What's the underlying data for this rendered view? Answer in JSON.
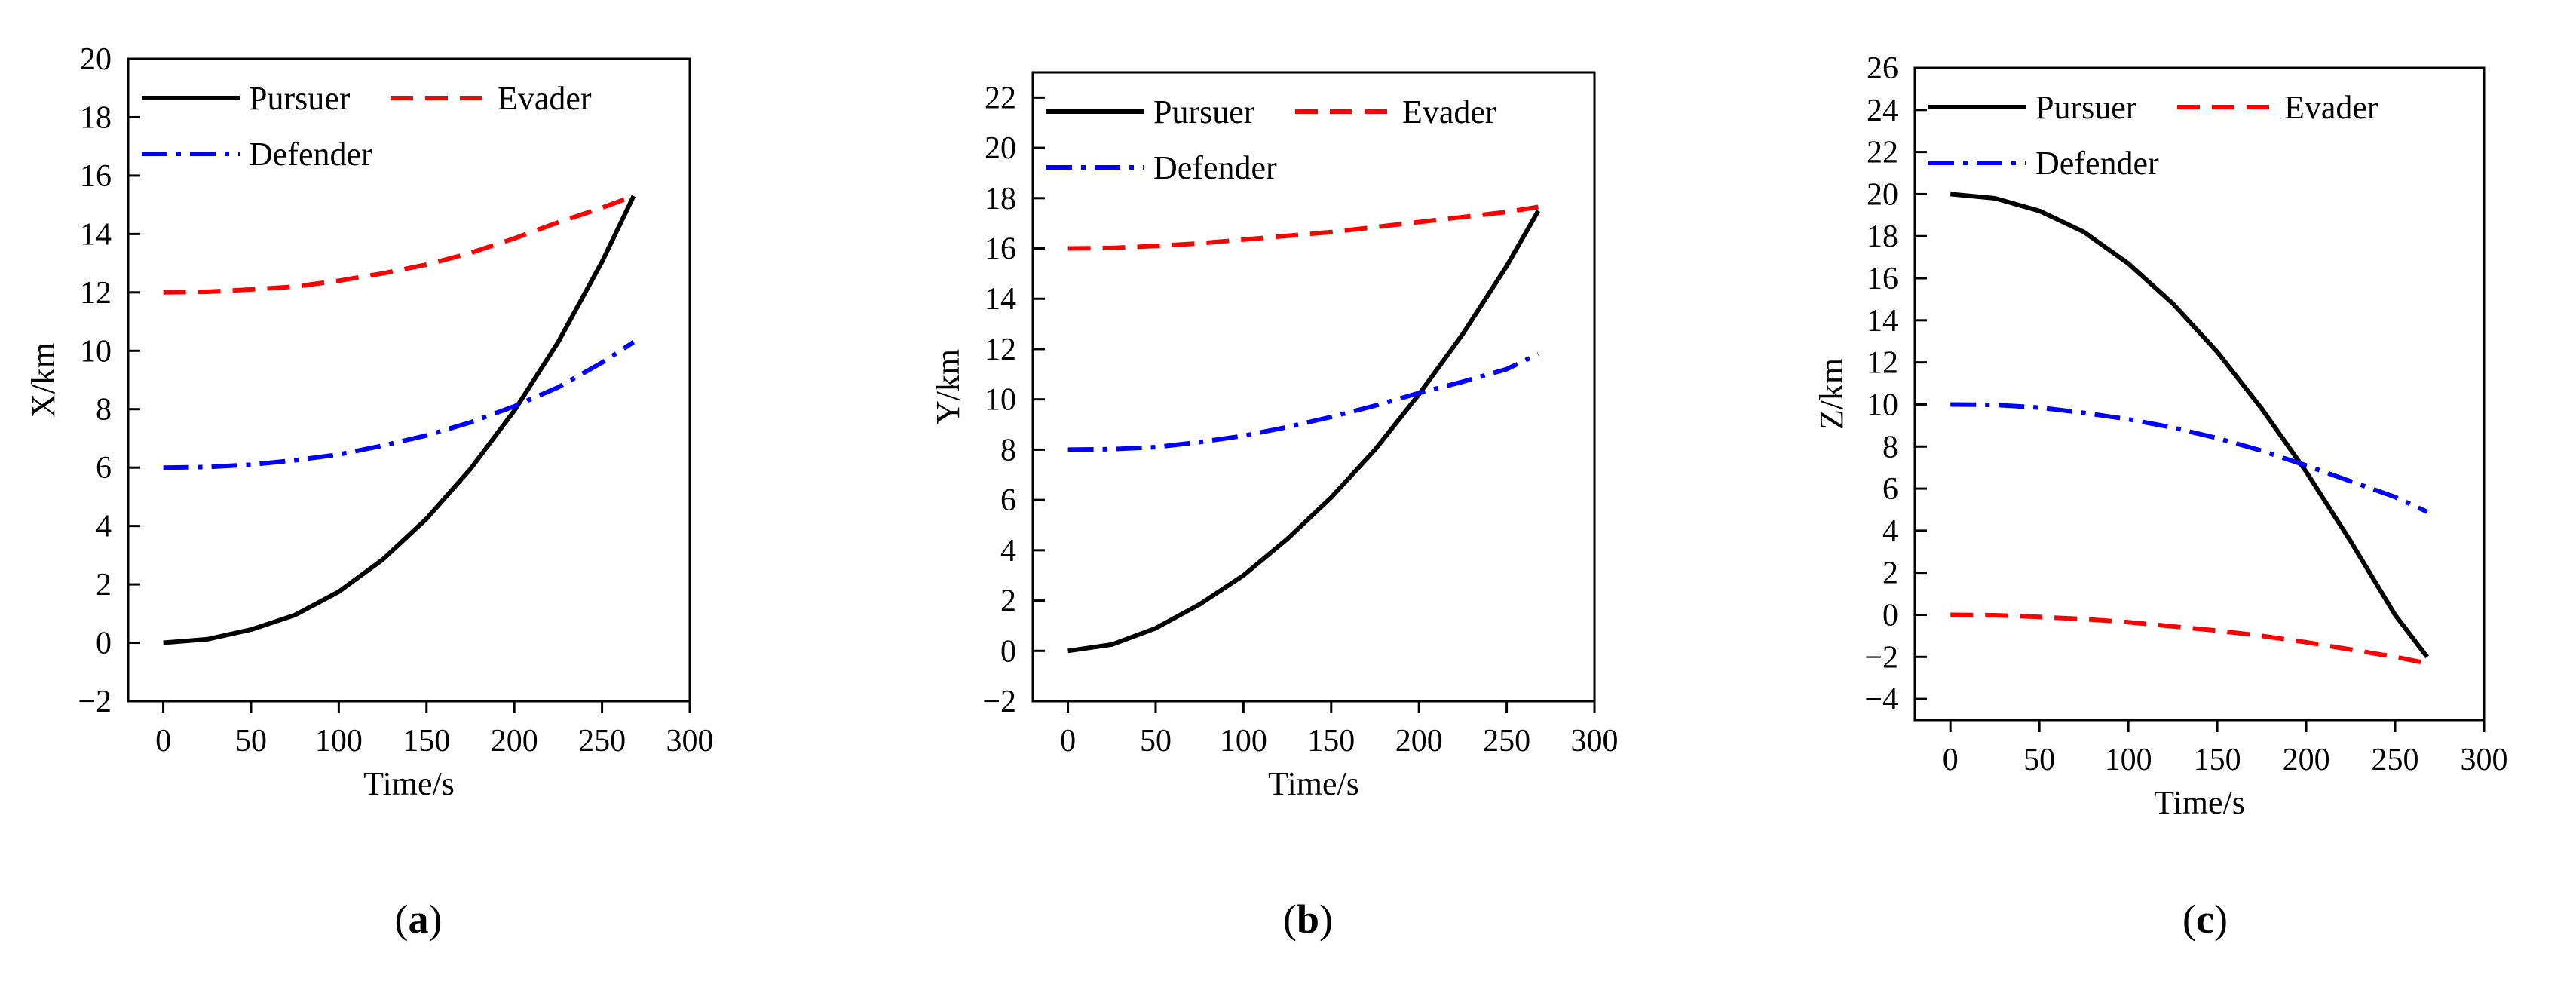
{
  "figure": {
    "captions": [
      "(a)",
      "(b)",
      "(c)"
    ],
    "caption_letters": [
      "a",
      "b",
      "c"
    ]
  },
  "series_styles": [
    {
      "name": "Pursuer",
      "color": "#000000",
      "dash": "solid"
    },
    {
      "name": "Evader",
      "color": "#ff0000",
      "dash": "dash"
    },
    {
      "name": "Defender",
      "color": "#0000ff",
      "dash": "dashdot"
    }
  ],
  "chart_data": [
    {
      "type": "line",
      "panel": "a",
      "title": "",
      "xlabel": "Time/s",
      "ylabel": "X/km",
      "xlim": [
        -20,
        300
      ],
      "ylim": [
        -2,
        20
      ],
      "xticks": [
        0,
        50,
        100,
        150,
        200,
        250,
        300
      ],
      "yticks": [
        -2,
        0,
        2,
        4,
        6,
        8,
        10,
        12,
        14,
        16,
        18,
        20
      ],
      "ytick_labels": [
        "−2",
        "0",
        "2",
        "4",
        "6",
        "8",
        "10",
        "12",
        "14",
        "16",
        "18",
        "20"
      ],
      "grid": false,
      "legend": [
        "Pursuer",
        "Evader",
        "Defender"
      ],
      "x": [
        0,
        25,
        50,
        75,
        100,
        125,
        150,
        175,
        200,
        225,
        250,
        268
      ],
      "series": [
        {
          "name": "Pursuer",
          "values": [
            0,
            0.12,
            0.45,
            0.95,
            1.75,
            2.85,
            4.25,
            5.95,
            7.95,
            10.3,
            13.05,
            15.3
          ]
        },
        {
          "name": "Evader",
          "values": [
            12,
            12.02,
            12.1,
            12.2,
            12.4,
            12.65,
            12.95,
            13.35,
            13.85,
            14.4,
            14.9,
            15.3
          ]
        },
        {
          "name": "Defender",
          "values": [
            6,
            6.02,
            6.1,
            6.25,
            6.45,
            6.75,
            7.1,
            7.55,
            8.1,
            8.75,
            9.6,
            10.3
          ]
        }
      ]
    },
    {
      "type": "line",
      "panel": "b",
      "title": "",
      "xlabel": "Time/s",
      "ylabel": "Y/km",
      "xlim": [
        -20,
        300
      ],
      "ylim": [
        -2,
        23
      ],
      "xticks": [
        0,
        50,
        100,
        150,
        200,
        250,
        300
      ],
      "yticks": [
        -2,
        0,
        2,
        4,
        6,
        8,
        10,
        12,
        14,
        16,
        18,
        20,
        22
      ],
      "ytick_labels": [
        "−2",
        "0",
        "2",
        "4",
        "6",
        "8",
        "10",
        "12",
        "14",
        "16",
        "18",
        "20",
        "22"
      ],
      "grid": false,
      "legend": [
        "Pursuer",
        "Evader",
        "Defender"
      ],
      "x": [
        0,
        25,
        50,
        75,
        100,
        125,
        150,
        175,
        200,
        225,
        250,
        268
      ],
      "series": [
        {
          "name": "Pursuer",
          "values": [
            0,
            0.25,
            0.9,
            1.85,
            3.0,
            4.45,
            6.1,
            8.0,
            10.2,
            12.6,
            15.3,
            17.5
          ]
        },
        {
          "name": "Evader",
          "values": [
            16,
            16.02,
            16.1,
            16.2,
            16.35,
            16.5,
            16.65,
            16.85,
            17.05,
            17.25,
            17.45,
            17.65
          ]
        },
        {
          "name": "Defender",
          "values": [
            8,
            8.02,
            8.1,
            8.3,
            8.55,
            8.9,
            9.3,
            9.75,
            10.25,
            10.7,
            11.2,
            11.8
          ]
        }
      ]
    },
    {
      "type": "line",
      "panel": "c",
      "title": "",
      "xlabel": "Time/s",
      "ylabel": "Z/km",
      "xlim": [
        -20,
        300
      ],
      "ylim": [
        -5,
        26
      ],
      "xticks": [
        0,
        50,
        100,
        150,
        200,
        250,
        300
      ],
      "yticks": [
        -4,
        -2,
        0,
        2,
        4,
        6,
        8,
        10,
        12,
        14,
        16,
        18,
        20,
        22,
        24,
        26
      ],
      "ytick_labels": [
        "−4",
        "−2",
        "0",
        "2",
        "4",
        "6",
        "8",
        "10",
        "12",
        "14",
        "16",
        "18",
        "20",
        "22",
        "24",
        "26"
      ],
      "grid": false,
      "legend": [
        "Pursuer",
        "Evader",
        "Defender"
      ],
      "x": [
        0,
        25,
        50,
        75,
        100,
        125,
        150,
        175,
        200,
        225,
        250,
        268
      ],
      "series": [
        {
          "name": "Pursuer",
          "values": [
            20,
            19.8,
            19.2,
            18.2,
            16.7,
            14.8,
            12.5,
            9.8,
            6.8,
            3.5,
            0.0,
            -2.0
          ]
        },
        {
          "name": "Evader",
          "values": [
            0,
            -0.02,
            -0.1,
            -0.2,
            -0.35,
            -0.55,
            -0.75,
            -1.0,
            -1.3,
            -1.65,
            -2.0,
            -2.3
          ]
        },
        {
          "name": "Defender",
          "values": [
            10,
            9.98,
            9.85,
            9.6,
            9.3,
            8.9,
            8.4,
            7.8,
            7.1,
            6.35,
            5.6,
            4.9
          ]
        }
      ]
    }
  ]
}
